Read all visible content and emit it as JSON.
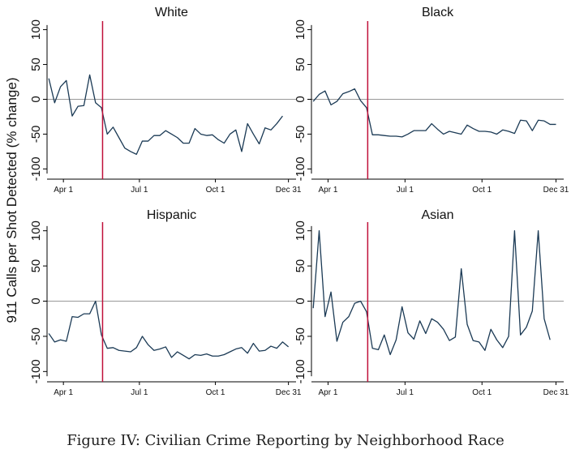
{
  "figure": {
    "y_axis_label": "911 Calls per Shot Detected (% change)",
    "caption": "Figure IV: Civilian Crime Reporting by Neighborhood Race",
    "colors": {
      "series": "#1b3a55",
      "event_line": "#c0103a",
      "zero_line": "#999999",
      "axis": "#000000"
    }
  },
  "chart_data": [
    {
      "type": "line",
      "title": "White",
      "xlabel": "",
      "ylabel": "911 Calls per Shot Detected (% change)",
      "ylim": [
        -110,
        110
      ],
      "yticks": [
        100,
        50,
        0,
        -50,
        -100
      ],
      "xticks": [
        {
          "label": "Apr 1",
          "week": 2.5
        },
        {
          "label": "Jul 1",
          "week": 15.5
        },
        {
          "label": "Oct 1",
          "week": 28.5
        },
        {
          "label": "Dec 31",
          "week": 41
        }
      ],
      "event_week": 9.2,
      "zero_line": true,
      "values": [
        30,
        -5,
        18,
        27,
        -24,
        -10,
        -9,
        35,
        -5,
        -12,
        -50,
        -40,
        -55,
        -70,
        -75,
        -79,
        -60,
        -60,
        -52,
        -52,
        -45,
        -50,
        -55,
        -63,
        -63,
        -42,
        -50,
        -52,
        -51,
        -58,
        -63,
        -50,
        -44,
        -75,
        -35,
        -50,
        -64,
        -41,
        -44,
        -35,
        -24
      ]
    },
    {
      "type": "line",
      "title": "Black",
      "xlabel": "",
      "ylabel": "",
      "ylim": [
        -110,
        110
      ],
      "yticks": [
        100,
        50,
        0,
        -50,
        -100
      ],
      "xticks": [
        {
          "label": "Apr 1",
          "week": 2.5
        },
        {
          "label": "Jul 1",
          "week": 15.5
        },
        {
          "label": "Oct 1",
          "week": 28.5
        },
        {
          "label": "Dec 31",
          "week": 41
        }
      ],
      "event_week": 9.2,
      "zero_line": true,
      "values": [
        -3,
        7,
        12,
        -8,
        -3,
        8,
        11,
        15,
        -2,
        -12,
        -51,
        -51,
        -52,
        -53,
        -53,
        -54,
        -50,
        -45,
        -45,
        -45,
        -35,
        -43,
        -50,
        -46,
        -48,
        -50,
        -37,
        -42,
        -46,
        -46,
        -47,
        -50,
        -44,
        -46,
        -49,
        -30,
        -31,
        -45,
        -30,
        -31,
        -36,
        -36
      ]
    },
    {
      "type": "line",
      "title": "Hispanic",
      "xlabel": "",
      "ylabel": "",
      "ylim": [
        -110,
        110
      ],
      "yticks": [
        100,
        50,
        0,
        -50,
        -100
      ],
      "xticks": [
        {
          "label": "Apr 1",
          "week": 2.5
        },
        {
          "label": "Jul 1",
          "week": 15.5
        },
        {
          "label": "Oct 1",
          "week": 28.5
        },
        {
          "label": "Dec 31",
          "week": 41
        }
      ],
      "event_week": 9.2,
      "zero_line": true,
      "values": [
        -46,
        -58,
        -55,
        -57,
        -22,
        -23,
        -18,
        -18,
        0,
        -48,
        -67,
        -66,
        -70,
        -71,
        -72,
        -66,
        -50,
        -62,
        -70,
        -68,
        -65,
        -80,
        -72,
        -77,
        -82,
        -76,
        -77,
        -75,
        -78,
        -78,
        -76,
        -72,
        -68,
        -66,
        -74,
        -60,
        -71,
        -70,
        -64,
        -67,
        -58,
        -65
      ]
    },
    {
      "type": "line",
      "title": "Asian",
      "xlabel": "",
      "ylabel": "",
      "ylim": [
        -110,
        110
      ],
      "yticks": [
        100,
        50,
        0,
        -50,
        -100
      ],
      "xticks": [
        {
          "label": "Apr 1",
          "week": 2.5
        },
        {
          "label": "Jul 1",
          "week": 15.5
        },
        {
          "label": "Oct 1",
          "week": 28.5
        },
        {
          "label": "Dec 31",
          "week": 41
        }
      ],
      "event_week": 9.2,
      "zero_line": true,
      "values": [
        -10,
        100,
        -22,
        13,
        -57,
        -30,
        -22,
        -3,
        0,
        -15,
        -67,
        -69,
        -48,
        -76,
        -55,
        -8,
        -45,
        -54,
        -28,
        -46,
        -25,
        -30,
        -40,
        -56,
        -51,
        46,
        -33,
        -56,
        -58,
        -70,
        -40,
        -55,
        -66,
        -50,
        100,
        -48,
        -37,
        -14,
        100,
        -25,
        -55
      ]
    }
  ]
}
